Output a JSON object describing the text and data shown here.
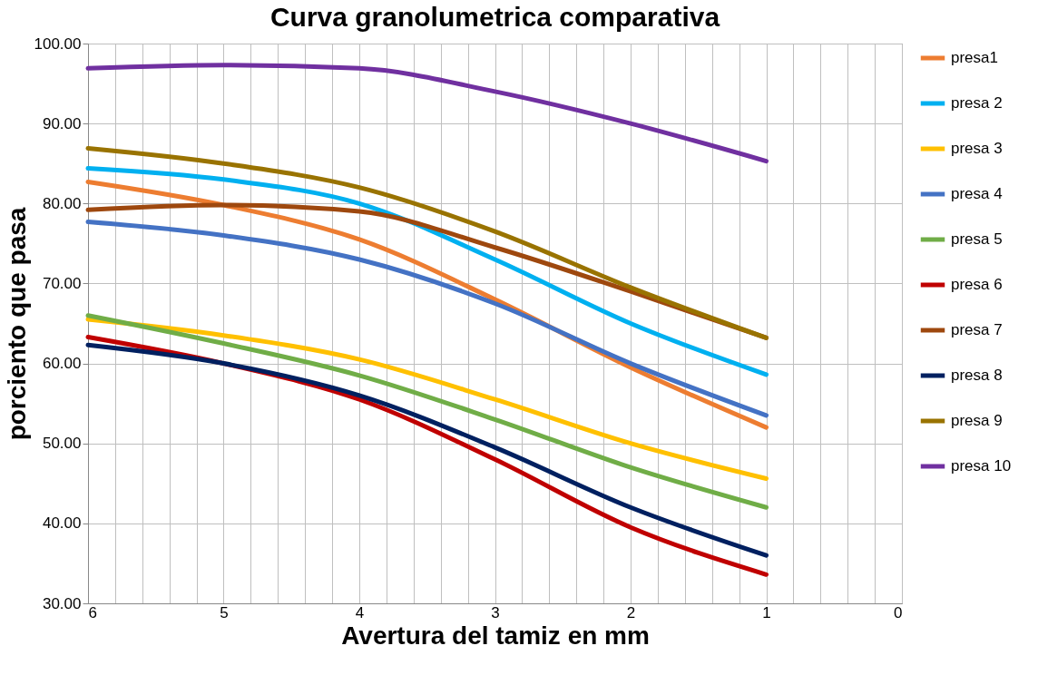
{
  "chart_data": {
    "type": "line",
    "title": "Curva granolumetrica comparativa",
    "xlabel": "Avertura del tamiz en mm",
    "ylabel": "porciento que pasa",
    "x": [
      6,
      5,
      4,
      3,
      2,
      1
    ],
    "series": [
      {
        "name": "presa1",
        "color": "#ed7d31",
        "values": [
          82.7,
          79.8,
          75.5,
          68,
          59.5,
          52
        ]
      },
      {
        "name": "presa 2",
        "color": "#00b0f0",
        "values": [
          84.4,
          83,
          80,
          73,
          65,
          58.6
        ]
      },
      {
        "name": "presa 3",
        "color": "#ffc000",
        "values": [
          65.5,
          63.5,
          60.5,
          55.5,
          50,
          45.6
        ]
      },
      {
        "name": "presa 4",
        "color": "#4472c4",
        "values": [
          77.7,
          76,
          73,
          67.5,
          60,
          53.5
        ]
      },
      {
        "name": "presa 5",
        "color": "#70ad47",
        "values": [
          66,
          62.5,
          58.5,
          53,
          47,
          42
        ]
      },
      {
        "name": "presa 6",
        "color": "#c00000",
        "values": [
          63.3,
          60,
          55.5,
          48,
          39.5,
          33.6
        ]
      },
      {
        "name": "presa 7",
        "color": "#9e480e",
        "values": [
          79.2,
          79.8,
          79,
          74.5,
          69,
          63.2
        ]
      },
      {
        "name": "presa 8",
        "color": "#002060",
        "values": [
          62.3,
          60,
          56,
          49.5,
          42,
          36
        ]
      },
      {
        "name": "presa 9",
        "color": "#997300",
        "values": [
          86.9,
          85,
          82,
          76.5,
          69.5,
          63.2
        ]
      },
      {
        "name": "presa 10",
        "color": "#7030a0",
        "values": [
          96.9,
          97.3,
          96.9,
          94,
          90,
          85.3
        ]
      }
    ],
    "xlim": [
      6,
      0
    ],
    "xticks": [
      6,
      {
        "value": 5.8,
        "label": null
      },
      {
        "value": 5.6,
        "label": null
      },
      {
        "value": 5.4,
        "label": null
      },
      {
        "value": 5.2,
        "label": null
      },
      5,
      {
        "value": 4.8,
        "label": null
      },
      {
        "value": 4.6,
        "label": null
      },
      {
        "value": 4.4,
        "label": null
      },
      {
        "value": 4.2,
        "label": null
      },
      4,
      {
        "value": 3.8,
        "label": null
      },
      {
        "value": 3.6,
        "label": null
      },
      {
        "value": 3.4,
        "label": null
      },
      {
        "value": 3.2,
        "label": null
      },
      3,
      {
        "value": 2.8,
        "label": null
      },
      {
        "value": 2.6,
        "label": null
      },
      {
        "value": 2.4,
        "label": null
      },
      {
        "value": 2.2,
        "label": null
      },
      2,
      {
        "value": 1.8,
        "label": null
      },
      {
        "value": 1.6,
        "label": null
      },
      {
        "value": 1.4,
        "label": null
      },
      {
        "value": 1.2,
        "label": null
      },
      1,
      {
        "value": 0.8,
        "label": null
      },
      {
        "value": 0.6,
        "label": null
      },
      {
        "value": 0.4,
        "label": null
      },
      {
        "value": 0.2,
        "label": null
      },
      0
    ],
    "ylim": [
      30,
      100
    ],
    "yticks": [
      {
        "value": 30,
        "label": "30.00"
      },
      {
        "value": 40,
        "label": "40.00"
      },
      {
        "value": 50,
        "label": "50.00"
      },
      {
        "value": 60,
        "label": "60.00"
      },
      {
        "value": 70,
        "label": "70.00"
      },
      {
        "value": 80,
        "label": "80.00"
      },
      {
        "value": 90,
        "label": "90.00"
      },
      {
        "value": 100,
        "label": "100.00"
      }
    ],
    "grid": true,
    "legend": "right",
    "marker": "none",
    "line_style": "solid"
  }
}
